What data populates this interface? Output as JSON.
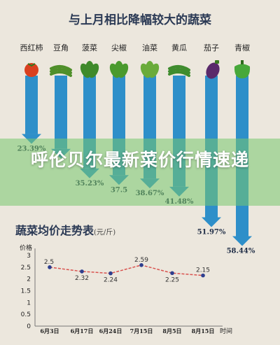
{
  "headline": "呼伦贝尔最新菜价行情速递",
  "chart_data": [
    {
      "type": "bar",
      "title": "与上月相比降幅较大的蔬菜",
      "categories": [
        "西红柿",
        "豆角",
        "菠菜",
        "尖椒",
        "油菜",
        "黄瓜",
        "茄子",
        "青椒"
      ],
      "values": [
        23.39,
        28.5,
        35.23,
        37.5,
        38.67,
        41.48,
        51.97,
        58.44
      ],
      "value_labels": [
        "23.39%",
        "",
        "35.23%",
        "37.5",
        "38.67%",
        "41.48%",
        "51.97%",
        "58.44%"
      ],
      "unit": "%",
      "bar_color": "#2e8fc9",
      "icons": [
        "tomato-icon",
        "bean-icon",
        "spinach-icon",
        "pepper-icon",
        "rape-icon",
        "cucumber-icon",
        "eggplant-icon",
        "green-pepper-icon"
      ],
      "icon_colors": [
        "#d9401f",
        "#4f8f2a",
        "#3f8a2b",
        "#4a9a2e",
        "#6aab3a",
        "#3f8c2e",
        "#5a2a6b",
        "#47a83a"
      ]
    },
    {
      "type": "line",
      "title": "蔬菜均价走势表",
      "title_unit": "(元/斤)",
      "ylabel": "价格",
      "xlabel": "时间",
      "x": [
        "6月3日",
        "6月17日",
        "6月24日",
        "7月15日",
        "8月5日",
        "8月15日"
      ],
      "values": [
        2.5,
        2.32,
        2.24,
        2.59,
        2.25,
        2.15
      ],
      "value_labels": [
        "2.5",
        "2.32",
        "2.24",
        "2.59",
        "2.25",
        "2.15"
      ],
      "yticks": [
        "0",
        "0.5",
        "1",
        "1.5",
        "2",
        "2.5",
        "3"
      ],
      "ylim": [
        0,
        3
      ],
      "line_color": "#d9534f",
      "point_color": "#2e3f8f"
    }
  ]
}
